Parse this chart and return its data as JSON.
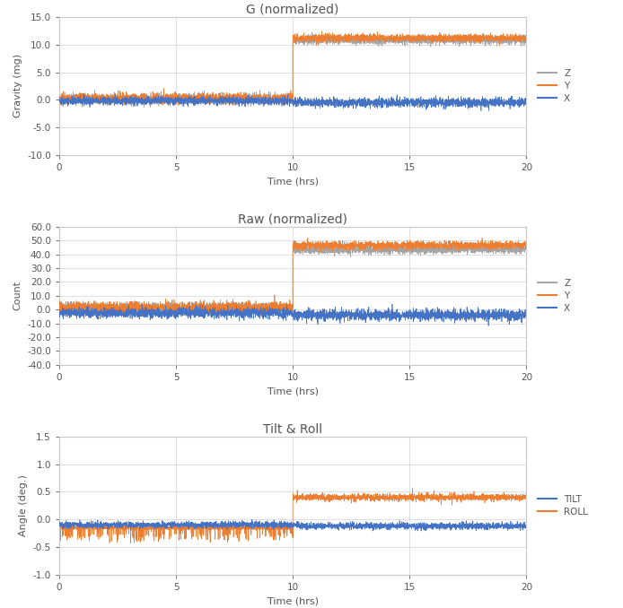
{
  "title1": "G (normalized)",
  "title2": "Raw (normalized)",
  "title3": "Tilt & Roll",
  "xlabel": "Time (hrs)",
  "ylabel1": "Gravity (mg)",
  "ylabel2": "Count",
  "ylabel3": "Angle (deg.)",
  "legend1": [
    "X",
    "Y",
    "Z"
  ],
  "legend2": [
    "X",
    "Y",
    "Z"
  ],
  "legend3": [
    "TILT",
    "ROLL"
  ],
  "colors": {
    "X": "#4472c4",
    "Y": "#ed7d31",
    "Z": "#a5a5a5",
    "TILT": "#4472c4",
    "ROLL": "#ed7d31"
  },
  "xlim": [
    0,
    20
  ],
  "ylim1": [
    -10.0,
    15.0
  ],
  "ylim2": [
    -40.0,
    60.0
  ],
  "ylim3": [
    -1.0,
    1.5
  ],
  "yticks1": [
    -10.0,
    -5.0,
    0.0,
    5.0,
    10.0,
    15.0
  ],
  "yticks2": [
    -40.0,
    -30.0,
    -20.0,
    -10.0,
    0.0,
    10.0,
    20.0,
    30.0,
    40.0,
    50.0,
    60.0
  ],
  "yticks3": [
    -1.0,
    -0.5,
    0.0,
    0.5,
    1.0,
    1.5
  ],
  "xticks": [
    0,
    5,
    10,
    15,
    20
  ],
  "discontinuity_time": 10,
  "seed": 42,
  "n_before": 2000,
  "n_after": 2000,
  "background_color": "#ffffff",
  "plot_bg_color": "#ffffff",
  "grid_color": "#d9d9d9",
  "outer_border_color": "#c8c8c8",
  "line_width": 0.5,
  "title_fontsize": 10,
  "label_fontsize": 8,
  "tick_fontsize": 7.5,
  "legend_fontsize": 7.5
}
